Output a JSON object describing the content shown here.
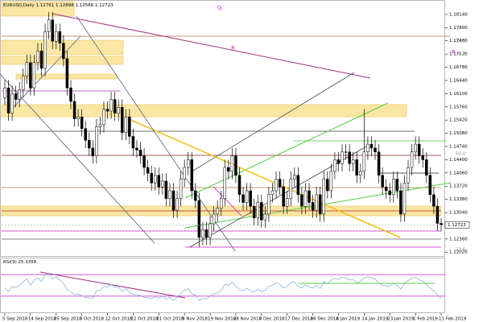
{
  "chart_data": {
    "type": "candlestick",
    "symbol": "EURUSD,Daily",
    "categories": [
      "5 Sep 2018",
      null,
      null,
      null,
      null,
      null,
      null,
      "14 Sep 2018",
      null,
      null,
      null,
      null,
      null,
      null,
      "25 Sep 2018",
      null,
      null,
      null,
      null,
      null,
      null,
      "3 Oct 2018",
      null,
      null,
      null,
      null,
      null,
      null,
      "12 Oct 2018",
      null,
      null,
      null,
      null,
      null,
      null,
      "22 Oct 2018",
      null,
      null,
      null,
      null,
      null,
      null,
      "31 Oct 2018",
      null,
      null,
      null,
      null,
      null,
      null,
      "9 Nov 2018",
      null,
      null,
      null,
      null,
      null,
      null,
      "19 Nov 2018",
      null,
      null,
      null,
      null,
      null,
      null,
      "28 Nov 2018",
      null,
      null,
      null,
      null,
      null,
      null,
      "7 Dec 2018",
      null,
      null,
      null,
      null,
      null,
      null,
      "17 Dec 2018",
      null,
      null,
      null,
      null,
      null,
      null,
      "26 Dec 2018",
      null,
      null,
      null,
      null,
      null,
      null,
      "4 Jan 2019",
      null,
      null,
      null,
      null,
      null,
      null,
      "14 Jan 2019",
      null,
      null,
      null,
      null,
      null,
      null,
      "23 Jan 2019",
      null,
      null,
      null,
      null,
      null,
      null,
      "1 Feb 2019",
      null,
      null,
      null,
      null,
      null,
      null,
      "11 Feb 2019"
    ],
    "open": [
      1.16,
      1.1625,
      1.156,
      1.161,
      1.1595,
      1.162,
      1.1655,
      1.169,
      1.1625,
      1.169,
      1.172,
      1.1675,
      1.177,
      1.18,
      1.1745,
      1.177,
      1.174,
      1.17,
      1.1625,
      1.159,
      1.1545,
      1.155,
      1.152,
      1.149,
      1.147,
      1.145,
      1.1525,
      1.153,
      1.157,
      1.1565,
      1.1595,
      1.156,
      1.1575,
      1.151,
      1.155,
      1.15,
      1.147,
      1.1465,
      1.145,
      1.142,
      1.1405,
      1.138,
      1.14,
      1.137,
      1.1385,
      1.134,
      1.136,
      1.131,
      1.134,
      1.139,
      1.142,
      1.144,
      1.136,
      1.1335,
      1.124,
      1.126,
      1.124,
      1.1275,
      1.13,
      1.1315,
      1.134,
      1.142,
      1.141,
      1.145,
      1.14,
      1.135,
      1.133,
      1.136,
      1.132,
      1.129,
      1.133,
      1.1285,
      1.13,
      1.135,
      1.136,
      1.139,
      1.137,
      1.132,
      1.134,
      1.139,
      1.14,
      1.135,
      1.132,
      1.136,
      1.133,
      1.131,
      1.135,
      1.13,
      1.139,
      1.136,
      1.141,
      1.144,
      1.143,
      1.146,
      1.146,
      1.143,
      1.144,
      1.14,
      1.141,
      1.146,
      1.148,
      1.147,
      1.146,
      1.14,
      1.137,
      1.136,
      1.135,
      1.139,
      1.136,
      1.13,
      1.138,
      1.142,
      1.146,
      1.148,
      1.145,
      1.144,
      1.14,
      1.135,
      1.132,
      1.12761
    ],
    "high": [
      1.1645,
      1.1645,
      1.163,
      1.163,
      1.164,
      1.1675,
      1.171,
      1.171,
      1.171,
      1.174,
      1.174,
      1.179,
      1.182,
      1.182,
      1.179,
      1.179,
      1.176,
      1.172,
      1.1645,
      1.161,
      1.157,
      1.157,
      1.154,
      1.151,
      1.149,
      1.1545,
      1.155,
      1.159,
      1.159,
      1.1615,
      1.1615,
      1.1595,
      1.1595,
      1.157,
      1.157,
      1.152,
      1.149,
      1.1485,
      1.147,
      1.144,
      1.1425,
      1.142,
      1.142,
      1.1405,
      1.1405,
      1.138,
      1.138,
      1.136,
      1.141,
      1.144,
      1.146,
      1.146,
      1.138,
      1.1355,
      1.128,
      1.128,
      1.1295,
      1.132,
      1.1335,
      1.136,
      1.144,
      1.144,
      1.147,
      1.147,
      1.142,
      1.137,
      1.138,
      1.138,
      1.134,
      1.135,
      1.135,
      1.132,
      1.137,
      1.138,
      1.141,
      1.141,
      1.139,
      1.136,
      1.141,
      1.142,
      1.142,
      1.137,
      1.138,
      1.138,
      1.135,
      1.137,
      1.137,
      1.141,
      1.141,
      1.143,
      1.146,
      1.146,
      1.148,
      1.148,
      1.148,
      1.146,
      1.146,
      1.143,
      1.157,
      1.15,
      1.15,
      1.149,
      1.148,
      1.142,
      1.139,
      1.138,
      1.141,
      1.141,
      1.138,
      1.14,
      1.144,
      1.148,
      1.15,
      1.15,
      1.147,
      1.146,
      1.142,
      1.137,
      1.134,
      1.12898
    ],
    "low": [
      1.158,
      1.154,
      1.154,
      1.1575,
      1.1575,
      1.16,
      1.1635,
      1.1605,
      1.1605,
      1.167,
      1.1655,
      1.1655,
      1.175,
      1.1725,
      1.1725,
      1.172,
      1.168,
      1.1605,
      1.157,
      1.1525,
      1.1525,
      1.15,
      1.147,
      1.145,
      1.143,
      1.143,
      1.1505,
      1.151,
      1.1545,
      1.1545,
      1.154,
      1.154,
      1.149,
      1.149,
      1.148,
      1.145,
      1.1445,
      1.143,
      1.14,
      1.1385,
      1.136,
      1.136,
      1.135,
      1.135,
      1.132,
      1.132,
      1.129,
      1.129,
      1.132,
      1.137,
      1.14,
      1.134,
      1.1315,
      1.1216,
      1.122,
      1.122,
      1.122,
      1.1255,
      1.128,
      1.1295,
      1.132,
      1.139,
      1.139,
      1.138,
      1.133,
      1.131,
      1.131,
      1.13,
      1.127,
      1.127,
      1.1265,
      1.1265,
      1.128,
      1.133,
      1.134,
      1.135,
      1.13,
      1.13,
      1.132,
      1.137,
      1.133,
      1.13,
      1.13,
      1.131,
      1.129,
      1.129,
      1.128,
      1.128,
      1.134,
      1.134,
      1.139,
      1.141,
      1.141,
      1.144,
      1.141,
      1.141,
      1.138,
      1.138,
      1.139,
      1.144,
      1.145,
      1.144,
      1.138,
      1.135,
      1.134,
      1.133,
      1.133,
      1.134,
      1.128,
      1.128,
      1.136,
      1.14,
      1.144,
      1.143,
      1.142,
      1.138,
      1.133,
      1.13,
      1.1256,
      1.12566
    ],
    "close": [
      1.1625,
      1.156,
      1.161,
      1.1595,
      1.162,
      1.1655,
      1.169,
      1.1625,
      1.169,
      1.172,
      1.1675,
      1.177,
      1.18,
      1.1745,
      1.177,
      1.174,
      1.17,
      1.1625,
      1.159,
      1.1545,
      1.155,
      1.152,
      1.149,
      1.147,
      1.145,
      1.1525,
      1.153,
      1.157,
      1.1565,
      1.1595,
      1.156,
      1.1575,
      1.151,
      1.155,
      1.15,
      1.147,
      1.1465,
      1.145,
      1.142,
      1.1405,
      1.138,
      1.14,
      1.137,
      1.1385,
      1.134,
      1.136,
      1.131,
      1.134,
      1.139,
      1.142,
      1.144,
      1.136,
      1.1335,
      1.124,
      1.126,
      1.124,
      1.1275,
      1.13,
      1.1315,
      1.134,
      1.142,
      1.141,
      1.145,
      1.14,
      1.135,
      1.133,
      1.136,
      1.132,
      1.129,
      1.133,
      1.1285,
      1.13,
      1.135,
      1.136,
      1.139,
      1.137,
      1.132,
      1.134,
      1.139,
      1.14,
      1.135,
      1.132,
      1.136,
      1.133,
      1.131,
      1.135,
      1.13,
      1.139,
      1.136,
      1.141,
      1.144,
      1.143,
      1.146,
      1.146,
      1.143,
      1.144,
      1.14,
      1.141,
      1.146,
      1.148,
      1.147,
      1.146,
      1.14,
      1.137,
      1.136,
      1.135,
      1.139,
      1.136,
      1.13,
      1.138,
      1.142,
      1.146,
      1.148,
      1.145,
      1.144,
      1.14,
      1.135,
      1.132,
      1.12761,
      1.12723
    ],
    "ylim": [
      1.1188,
      1.1847
    ],
    "yticks": [
      {
        "value": 1.1814,
        "label": "1.18140"
      },
      {
        "value": 1.178,
        "label": "1.17800"
      },
      {
        "value": 1.1746,
        "label": "1.17460"
      },
      {
        "value": 1.1712,
        "label": "1.17120"
      },
      {
        "value": 1.1678,
        "label": "1.16780"
      },
      {
        "value": 1.1644,
        "label": "1.16440"
      },
      {
        "value": 1.161,
        "label": "1.16100"
      },
      {
        "value": 1.1576,
        "label": "1.15760"
      },
      {
        "value": 1.1542,
        "label": "1.15420"
      },
      {
        "value": 1.1508,
        "label": "1.15080"
      },
      {
        "value": 1.1474,
        "label": "1.14740"
      },
      {
        "value": 1.144,
        "label": "1.14400"
      },
      {
        "value": 1.1406,
        "label": "1.14060"
      },
      {
        "value": 1.1372,
        "label": "1.13720"
      },
      {
        "value": 1.1338,
        "label": "1.13380"
      },
      {
        "value": 1.1304,
        "label": "1.13040"
      },
      {
        "value": 1.1236,
        "label": "1.12360"
      },
      {
        "value": 1.1202,
        "label": "1.12020"
      }
    ],
    "rsi": {
      "name": "RSI(9)",
      "color": "#87b5d9",
      "ylim": [
        0,
        100
      ],
      "levels": [
        70,
        30
      ],
      "values": [
        45,
        38,
        48,
        46,
        50,
        56,
        62,
        50,
        60,
        64,
        57,
        70,
        73,
        62,
        66,
        60,
        53,
        42,
        38,
        33,
        34,
        31,
        28,
        27,
        26,
        40,
        41,
        48,
        47,
        52,
        46,
        48,
        38,
        44,
        37,
        33,
        33,
        31,
        28,
        27,
        25,
        29,
        26,
        30,
        24,
        28,
        22,
        28,
        36,
        41,
        44,
        34,
        32,
        22,
        26,
        25,
        30,
        34,
        36,
        40,
        52,
        50,
        56,
        48,
        42,
        40,
        45,
        40,
        37,
        43,
        38,
        41,
        48,
        50,
        55,
        52,
        45,
        48,
        55,
        56,
        48,
        45,
        51,
        47,
        45,
        50,
        44,
        57,
        53,
        60,
        63,
        61,
        65,
        64,
        60,
        61,
        55,
        57,
        64,
        66,
        64,
        62,
        54,
        50,
        49,
        48,
        54,
        50,
        43,
        54,
        59,
        63,
        65,
        60,
        58,
        52,
        45,
        40,
        33,
        25.3358
      ]
    },
    "annotations": [
      "G",
      "R",
      "R",
      "38.2",
      "38.2",
      "50.0",
      "23.6"
    ]
  }
}
